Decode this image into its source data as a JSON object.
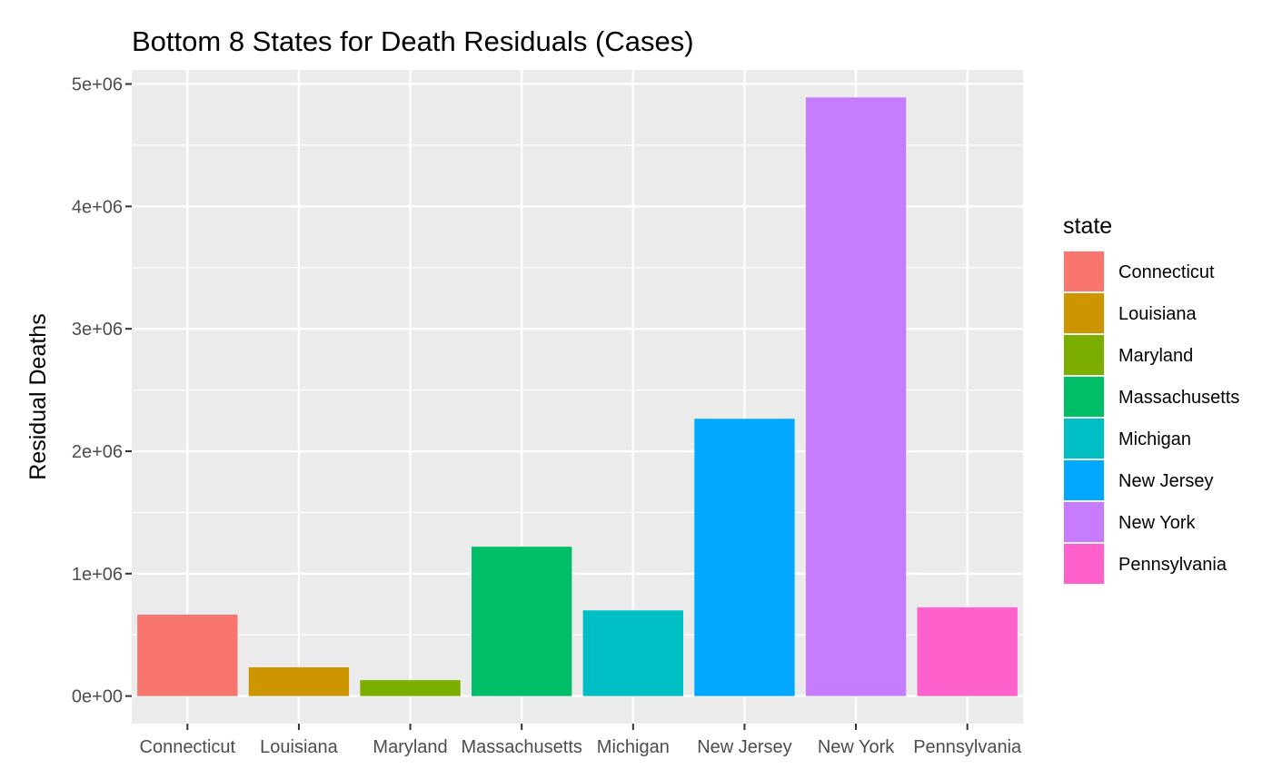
{
  "chart_data": {
    "type": "bar",
    "title": "Bottom 8 States for Death Residuals (Cases)",
    "xlabel": "",
    "ylabel": "Residual Deaths",
    "categories": [
      "Connecticut",
      "Louisiana",
      "Maryland",
      "Massachusetts",
      "Michigan",
      "New Jersey",
      "New York",
      "Pennsylvania"
    ],
    "values": [
      665000,
      235000,
      130000,
      1220000,
      700000,
      2265000,
      4890000,
      725000
    ],
    "colors": [
      "#F8766D",
      "#CD9600",
      "#7CAE00",
      "#00BE67",
      "#00BFC4",
      "#00A9FF",
      "#C77CFF",
      "#FF61CC"
    ],
    "ylim": [
      -225000,
      5115000
    ],
    "y_ticks": [
      0,
      1000000,
      2000000,
      3000000,
      4000000,
      5000000
    ],
    "y_tick_labels": [
      "0e+00",
      "1e+06",
      "2e+06",
      "3e+06",
      "4e+06",
      "5e+06"
    ],
    "grid": true,
    "panel_background": "#EBEBEB",
    "legend": {
      "title": "state",
      "position": "right",
      "entries": [
        "Connecticut",
        "Louisiana",
        "Maryland",
        "Massachusetts",
        "Michigan",
        "New Jersey",
        "New York",
        "Pennsylvania"
      ]
    }
  }
}
